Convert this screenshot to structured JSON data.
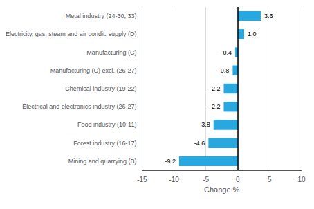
{
  "chart_data": {
    "type": "bar",
    "orientation": "horizontal",
    "categories": [
      "Mining and quarrying (B)",
      "Forest industry (16-17)",
      "Food industry (10-11)",
      "Electrical and electronics industry (26-27)",
      "Chemical industry (19-22)",
      "Manufacturing (C) excl. (26-27)",
      "Manufacturing (C)",
      "Electricity, gas, steam and air condit. supply (D)",
      "Metal industry (24-30, 33)"
    ],
    "values": [
      -9.2,
      -4.6,
      -3.8,
      -2.2,
      -2.2,
      -0.8,
      -0.4,
      1.0,
      3.6
    ],
    "value_labels": [
      "-9.2",
      "-4.6",
      "-3.8",
      "-2.2",
      "-2.2",
      "-0.8",
      "-0.4",
      "1.0",
      "3.6"
    ],
    "data_labels": true,
    "color": "#29a8e0",
    "xlabel": "Change %",
    "xlim": [
      -15,
      10
    ],
    "xticks": [
      -15,
      -10,
      -5,
      0,
      5,
      10
    ],
    "grid": true
  }
}
